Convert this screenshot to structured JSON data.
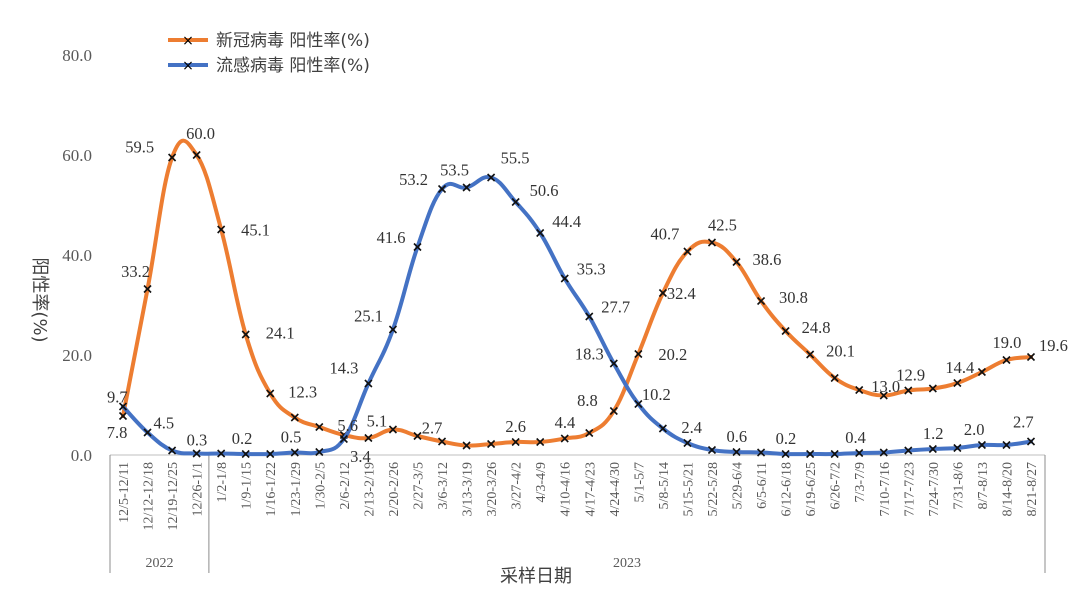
{
  "chart_data": {
    "type": "line",
    "xlabel": "采样日期",
    "ylabel": "阳性率(%)",
    "ylim": [
      0,
      80
    ],
    "yticks": [
      "0.0",
      "20.0",
      "40.0",
      "60.0",
      "80.0"
    ],
    "grid": false,
    "legend_position": "top-left",
    "categories": [
      "12/5-12/11",
      "12/12-12/18",
      "12/19-12/25",
      "12/26-1/1",
      "1/2-1/8",
      "1/9-1/15",
      "1/16-1/22",
      "1/23-1/29",
      "1/30-2/5",
      "2/6-2/12",
      "2/13-2/19",
      "2/20-2/26",
      "2/27-3/5",
      "3/6-3/12",
      "3/13-3/19",
      "3/20-3/26",
      "3/27-4/2",
      "4/3-4/9",
      "4/10-4/16",
      "4/17-4/23",
      "4/24-4/30",
      "5/1-5/7",
      "5/8-5/14",
      "5/15-5/21",
      "5/22-5/28",
      "5/29-6/4",
      "6/5-6/11",
      "6/12-6/18",
      "6/19-6/25",
      "6/26-7/2",
      "7/3-7/9",
      "7/10-7/16",
      "7/17-7/23",
      "7/24-7/30",
      "7/31-8/6",
      "8/7-8/13",
      "8/14-8/20",
      "8/21-8/27"
    ],
    "year_groups": [
      {
        "label": "2022",
        "count": 4
      },
      {
        "label": "2023",
        "count": 34
      }
    ],
    "series": [
      {
        "name": "新冠病毒 阳性率(%)",
        "color": "#ED7D31",
        "values": [
          7.8,
          33.2,
          59.5,
          60.0,
          45.1,
          24.1,
          12.3,
          7.5,
          5.6,
          4.0,
          3.4,
          5.1,
          3.8,
          2.7,
          1.9,
          2.2,
          2.6,
          2.6,
          3.3,
          4.4,
          8.8,
          20.2,
          32.4,
          40.7,
          42.5,
          38.6,
          30.8,
          24.8,
          20.1,
          15.4,
          13.0,
          11.9,
          12.9,
          13.3,
          14.4,
          16.6,
          19.0,
          19.6
        ],
        "labels": [
          "7.8",
          "33.2",
          "59.5",
          "60.0",
          "45.1",
          "24.1",
          "12.3",
          "",
          "5.6",
          "",
          "3.4",
          "5.1",
          "",
          "2.7",
          "",
          "",
          "2.6",
          "",
          "",
          "4.4",
          "8.8",
          "20.2",
          "32.4",
          "40.7",
          "42.5",
          "38.6",
          "30.8",
          "24.8",
          "20.1",
          "",
          "13.0",
          "",
          "12.9",
          "",
          "14.4",
          "",
          "19.0",
          "19.6"
        ]
      },
      {
        "name": "流感病毒 阳性率(%)",
        "color": "#4472C4",
        "values": [
          9.7,
          4.5,
          0.9,
          0.3,
          0.3,
          0.2,
          0.2,
          0.5,
          0.6,
          3.2,
          14.3,
          25.1,
          41.6,
          53.2,
          53.5,
          55.5,
          50.6,
          44.4,
          35.3,
          27.7,
          18.3,
          10.2,
          5.3,
          2.4,
          1.0,
          0.6,
          0.5,
          0.2,
          0.2,
          0.2,
          0.4,
          0.5,
          0.9,
          1.2,
          1.4,
          2.0,
          2.0,
          2.7
        ],
        "labels": [
          "9.7",
          "4.5",
          "",
          "0.3",
          "",
          "0.2",
          "",
          "0.5",
          "",
          "",
          "14.3",
          "25.1",
          "41.6",
          "53.2",
          "53.5",
          "55.5",
          "50.6",
          "44.4",
          "35.3",
          "27.7",
          "18.3",
          "10.2",
          "",
          "2.4",
          "",
          "0.6",
          "",
          "0.2",
          "",
          "",
          "0.4",
          "",
          "",
          "1.2",
          "",
          "2.0",
          "",
          "2.7"
        ]
      }
    ]
  }
}
